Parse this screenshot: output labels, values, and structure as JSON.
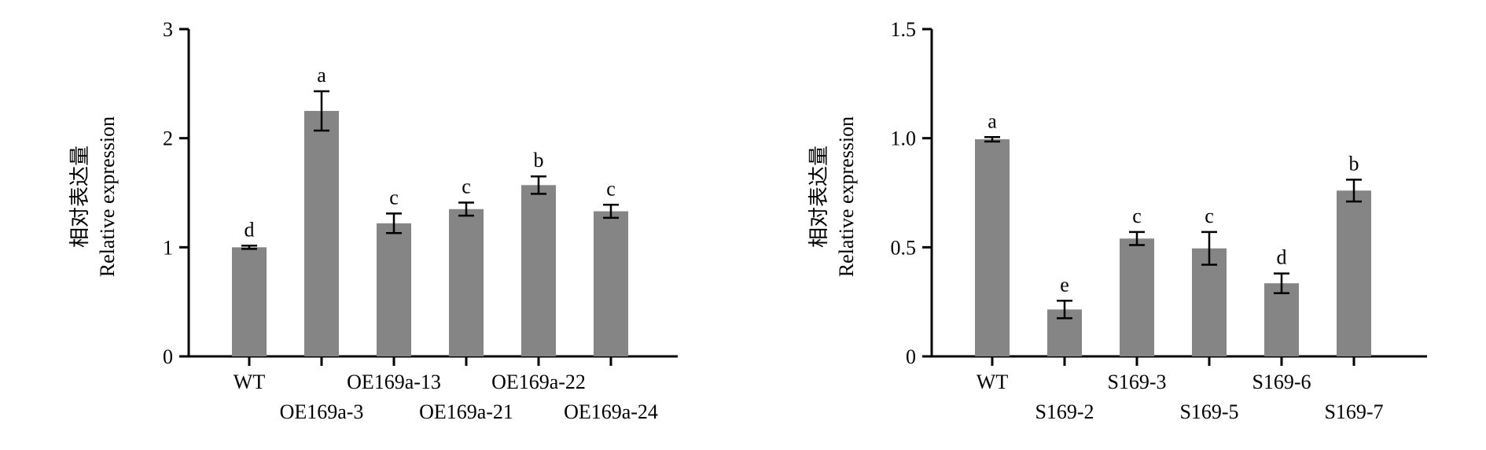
{
  "colors": {
    "bar": "#858585",
    "axis": "#000000",
    "text": "#000000"
  },
  "chart_data": [
    {
      "type": "bar",
      "ylabel_cn": "相对表达量",
      "ylabel_en": "Relative expression",
      "ylim": [
        0,
        3
      ],
      "yticks": [
        "0",
        "1",
        "2",
        "3"
      ],
      "yticks_values": [
        0,
        1,
        2,
        3
      ],
      "categories": [
        "WT",
        "OE169a-3",
        "OE169a-13",
        "OE169a-21",
        "OE169a-22",
        "OE169a-24"
      ],
      "values": [
        1.0,
        2.25,
        1.22,
        1.35,
        1.57,
        1.33
      ],
      "errors": [
        0.015,
        0.18,
        0.09,
        0.06,
        0.08,
        0.06
      ],
      "significance": [
        "d",
        "a",
        "c",
        "c",
        "b",
        "c"
      ]
    },
    {
      "type": "bar",
      "ylabel_cn": "相对表达量",
      "ylabel_en": "Relative expression",
      "ylim": [
        0,
        1.5
      ],
      "yticks": [
        "0",
        "0.5",
        "1.0",
        "1.5"
      ],
      "yticks_values": [
        0,
        0.5,
        1.0,
        1.5
      ],
      "categories": [
        "WT",
        "S169-2",
        "S169-3",
        "S169-5",
        "S169-6",
        "S169-7"
      ],
      "values": [
        0.995,
        0.215,
        0.54,
        0.495,
        0.335,
        0.76
      ],
      "errors": [
        0.01,
        0.04,
        0.03,
        0.075,
        0.045,
        0.05
      ],
      "significance": [
        "a",
        "e",
        "c",
        "c",
        "d",
        "b"
      ]
    }
  ]
}
